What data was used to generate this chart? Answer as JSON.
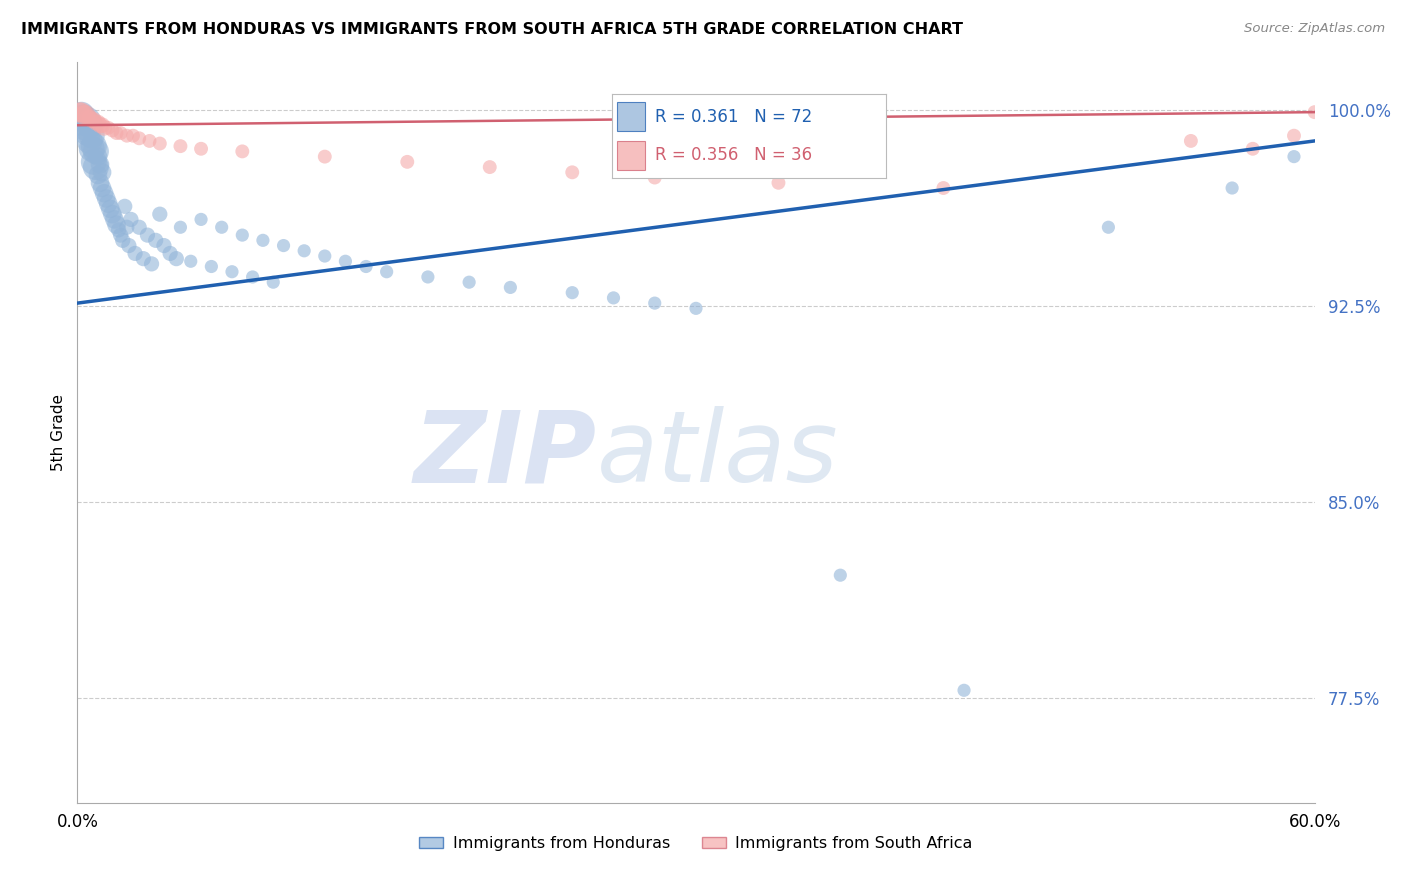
{
  "title": "IMMIGRANTS FROM HONDURAS VS IMMIGRANTS FROM SOUTH AFRICA 5TH GRADE CORRELATION CHART",
  "source": "Source: ZipAtlas.com",
  "ylabel": "5th Grade",
  "ytick_vals": [
    0.775,
    0.85,
    0.925,
    1.0
  ],
  "ytick_labels": [
    "77.5%",
    "85.0%",
    "92.5%",
    "100.0%"
  ],
  "xlim": [
    0.0,
    0.6
  ],
  "ylim": [
    0.735,
    1.018
  ],
  "legend_r_blue": "R = 0.361",
  "legend_n_blue": "N = 72",
  "legend_r_pink": "R = 0.356",
  "legend_n_pink": "N = 36",
  "legend_label_blue": "Immigrants from Honduras",
  "legend_label_pink": "Immigrants from South Africa",
  "blue_color": "#92b4d8",
  "pink_color": "#f4aaaa",
  "blue_line_color": "#2060b0",
  "pink_line_color": "#d06070",
  "blue_line_x": [
    0.0,
    0.6
  ],
  "blue_line_y": [
    0.926,
    0.988
  ],
  "pink_line_x": [
    0.0,
    0.6
  ],
  "pink_line_y": [
    0.994,
    0.999
  ],
  "blue_scatter_x": [
    0.001,
    0.002,
    0.003,
    0.004,
    0.005,
    0.005,
    0.006,
    0.006,
    0.007,
    0.007,
    0.008,
    0.008,
    0.009,
    0.009,
    0.01,
    0.01,
    0.011,
    0.011,
    0.012,
    0.012,
    0.013,
    0.014,
    0.015,
    0.016,
    0.017,
    0.018,
    0.019,
    0.02,
    0.021,
    0.022,
    0.023,
    0.024,
    0.025,
    0.026,
    0.028,
    0.03,
    0.032,
    0.034,
    0.036,
    0.038,
    0.04,
    0.042,
    0.045,
    0.048,
    0.05,
    0.055,
    0.06,
    0.065,
    0.07,
    0.075,
    0.08,
    0.085,
    0.09,
    0.095,
    0.1,
    0.11,
    0.12,
    0.13,
    0.14,
    0.15,
    0.17,
    0.19,
    0.21,
    0.24,
    0.26,
    0.28,
    0.3,
    0.37,
    0.43,
    0.5,
    0.56,
    0.59
  ],
  "blue_scatter_y": [
    0.995,
    0.998,
    0.997,
    0.993,
    0.996,
    0.991,
    0.994,
    0.988,
    0.99,
    0.985,
    0.986,
    0.98,
    0.984,
    0.978,
    0.982,
    0.975,
    0.979,
    0.972,
    0.976,
    0.97,
    0.968,
    0.966,
    0.964,
    0.962,
    0.96,
    0.958,
    0.956,
    0.954,
    0.952,
    0.95,
    0.963,
    0.955,
    0.948,
    0.958,
    0.945,
    0.955,
    0.943,
    0.952,
    0.941,
    0.95,
    0.96,
    0.948,
    0.945,
    0.943,
    0.955,
    0.942,
    0.958,
    0.94,
    0.955,
    0.938,
    0.952,
    0.936,
    0.95,
    0.934,
    0.948,
    0.946,
    0.944,
    0.942,
    0.94,
    0.938,
    0.936,
    0.934,
    0.932,
    0.93,
    0.928,
    0.926,
    0.924,
    0.822,
    0.778,
    0.955,
    0.97,
    0.982
  ],
  "pink_scatter_x": [
    0.001,
    0.002,
    0.003,
    0.004,
    0.005,
    0.006,
    0.007,
    0.008,
    0.009,
    0.01,
    0.011,
    0.012,
    0.013,
    0.015,
    0.017,
    0.019,
    0.021,
    0.024,
    0.027,
    0.03,
    0.035,
    0.04,
    0.05,
    0.06,
    0.08,
    0.12,
    0.16,
    0.2,
    0.24,
    0.28,
    0.34,
    0.42,
    0.54,
    0.57,
    0.59,
    0.6
  ],
  "pink_scatter_y": [
    0.999,
    0.999,
    0.998,
    0.998,
    0.997,
    0.997,
    0.996,
    0.996,
    0.995,
    0.995,
    0.994,
    0.994,
    0.993,
    0.993,
    0.992,
    0.991,
    0.991,
    0.99,
    0.99,
    0.989,
    0.988,
    0.987,
    0.986,
    0.985,
    0.984,
    0.982,
    0.98,
    0.978,
    0.976,
    0.974,
    0.972,
    0.97,
    0.988,
    0.985,
    0.99,
    0.999
  ]
}
